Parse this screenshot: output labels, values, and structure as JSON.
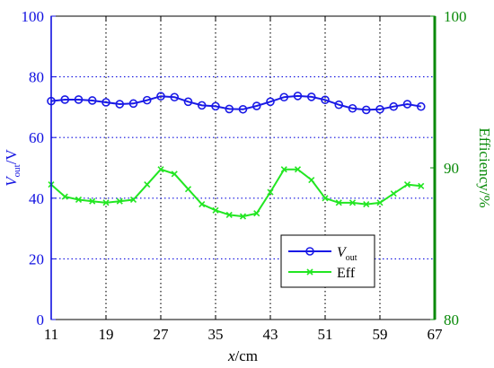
{
  "chart_data": {
    "type": "line",
    "xlabel": "x/cm",
    "xlabel_parts": {
      "var": "x",
      "unit": "/cm"
    },
    "ylabel_left_parts": {
      "main": "V",
      "sub": "out",
      "unit": "/V"
    },
    "ylabel_right": "Efficiency/%",
    "xlim": [
      11,
      67
    ],
    "ylim_left": [
      0,
      100
    ],
    "ylim_right": [
      80,
      100
    ],
    "x_ticks": [
      "11",
      "19",
      "27",
      "35",
      "43",
      "51",
      "59",
      "67"
    ],
    "y_left_ticks": [
      "0",
      "20",
      "40",
      "60",
      "80",
      "100"
    ],
    "y_right_ticks": [
      "80",
      "90",
      "100"
    ],
    "grid": true,
    "legend_position": "lower-right",
    "colors": {
      "left_axis": "#1010e0",
      "right_axis": "#0a8a0a",
      "vout": "#1a1ae6",
      "eff": "#22e622"
    },
    "x": [
      11,
      13,
      15,
      17,
      19,
      21,
      23,
      25,
      27,
      29,
      31,
      33,
      35,
      37,
      39,
      41,
      43,
      45,
      47,
      49,
      51,
      53,
      55,
      57,
      59,
      61,
      63,
      65
    ],
    "series": [
      {
        "name": "V_out",
        "legend_main": "V",
        "legend_sub": "out",
        "axis": "left",
        "marker": "circle",
        "values": [
          72,
          72.5,
          72.5,
          72.2,
          71.6,
          71,
          71.2,
          72.3,
          73.6,
          73.3,
          71.8,
          70.6,
          70.3,
          69.4,
          69.3,
          70.4,
          71.8,
          73.3,
          73.7,
          73.4,
          72.4,
          70.8,
          69.6,
          69.1,
          69.3,
          70.2,
          71,
          70.2
        ]
      },
      {
        "name": "Eff",
        "legend_main": "Eff",
        "axis": "right",
        "marker": "x",
        "values": [
          88.9,
          88.1,
          87.9,
          87.8,
          87.7,
          87.8,
          87.9,
          88.9,
          89.9,
          89.6,
          88.6,
          87.6,
          87.2,
          86.9,
          86.8,
          87.0,
          88.4,
          89.9,
          89.9,
          89.2,
          88.0,
          87.7,
          87.7,
          87.6,
          87.7,
          88.3,
          88.9,
          88.8
        ]
      }
    ]
  }
}
